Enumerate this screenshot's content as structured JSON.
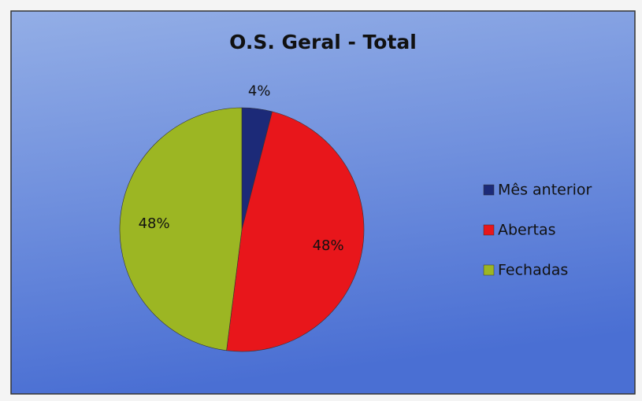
{
  "chart_data": {
    "type": "pie",
    "title": "O.S. Geral - Total",
    "categories": [
      "Mês anterior",
      "Abertas",
      "Fechadas"
    ],
    "values": [
      4,
      48,
      48
    ],
    "value_labels": [
      "4%",
      "48%",
      "48%"
    ],
    "colors": [
      "#1c2a78",
      "#e8161b",
      "#9cb623"
    ],
    "legend": "right"
  }
}
